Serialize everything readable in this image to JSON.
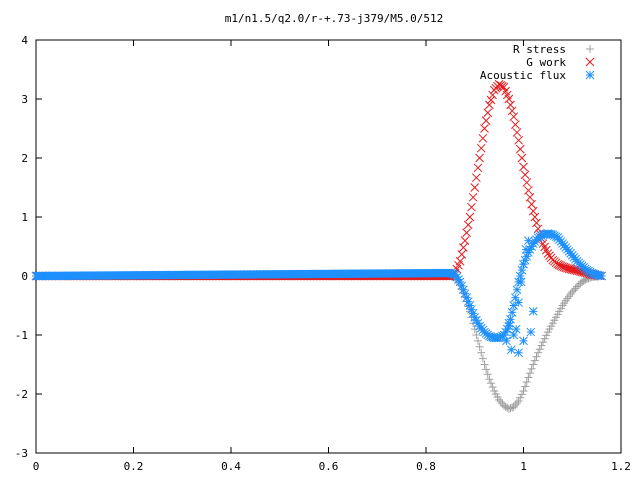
{
  "chart_data": {
    "type": "scatter",
    "title": "m1/n1.5/q2.0/r-+.73-j379/M5.0/512",
    "xlabel": "",
    "ylabel": "",
    "xlim": [
      0,
      1.2
    ],
    "ylim": [
      -3,
      4
    ],
    "xticks": [
      "0",
      "0.2",
      "0.4",
      "0.6",
      "0.8",
      "1",
      "1.2"
    ],
    "yticks": [
      "-3",
      "-2",
      "-1",
      "0",
      "1",
      "2",
      "3",
      "4"
    ],
    "grid": false,
    "legend_position": "top-right",
    "series": [
      {
        "name": "R stress",
        "marker": "plus",
        "color": "#a0a0a0",
        "x": [
          0.0,
          0.85,
          0.86,
          0.87,
          0.88,
          0.89,
          0.9,
          0.91,
          0.92,
          0.93,
          0.94,
          0.95,
          0.96,
          0.97,
          0.98,
          0.99,
          1.0,
          1.01,
          1.02,
          1.03,
          1.04,
          1.05,
          1.06,
          1.07,
          1.08,
          1.09,
          1.1,
          1.11,
          1.12,
          1.13,
          1.14,
          1.15,
          1.16
        ],
        "y": [
          0.0,
          0.0,
          -0.03,
          -0.15,
          -0.35,
          -0.6,
          -0.9,
          -1.2,
          -1.5,
          -1.75,
          -1.95,
          -2.1,
          -2.2,
          -2.25,
          -2.22,
          -2.12,
          -1.95,
          -1.72,
          -1.5,
          -1.3,
          -1.12,
          -0.95,
          -0.8,
          -0.65,
          -0.5,
          -0.38,
          -0.27,
          -0.18,
          -0.1,
          -0.05,
          -0.02,
          -0.01,
          0.0
        ]
      },
      {
        "name": "G work",
        "marker": "cross",
        "color": "#e41a1c",
        "x": [
          0.0,
          0.85,
          0.86,
          0.87,
          0.88,
          0.89,
          0.9,
          0.91,
          0.92,
          0.93,
          0.94,
          0.95,
          0.96,
          0.97,
          0.98,
          0.99,
          1.0,
          1.01,
          1.02,
          1.03,
          1.04,
          1.05,
          1.06,
          1.07,
          1.08,
          1.09,
          1.1,
          1.11,
          1.12,
          1.13,
          1.14,
          1.15,
          1.16
        ],
        "y": [
          0.0,
          0.0,
          0.05,
          0.25,
          0.6,
          1.0,
          1.5,
          2.0,
          2.5,
          2.9,
          3.15,
          3.25,
          3.2,
          3.0,
          2.7,
          2.3,
          1.85,
          1.45,
          1.1,
          0.8,
          0.55,
          0.38,
          0.27,
          0.2,
          0.16,
          0.13,
          0.11,
          0.09,
          0.07,
          0.05,
          0.03,
          0.01,
          0.0
        ]
      },
      {
        "name": "Acoustic flux",
        "marker": "star",
        "color": "#1e90ff",
        "x": [
          0.0,
          0.85,
          0.86,
          0.87,
          0.88,
          0.89,
          0.9,
          0.91,
          0.92,
          0.93,
          0.94,
          0.95,
          0.96,
          0.97,
          0.98,
          0.99,
          1.0,
          1.01,
          1.02,
          1.03,
          1.04,
          1.05,
          1.06,
          1.07,
          1.08,
          1.09,
          1.1,
          1.11,
          1.12,
          1.13,
          1.14,
          1.15,
          1.16,
          0.965,
          0.975,
          0.985,
          0.99,
          0.995,
          1.0,
          1.005,
          1.01,
          1.015,
          1.02,
          0.97,
          0.98,
          0.99,
          1.0
        ],
        "y": [
          0.0,
          0.05,
          0.02,
          -0.1,
          -0.3,
          -0.5,
          -0.7,
          -0.85,
          -0.95,
          -1.02,
          -1.05,
          -1.05,
          -1.0,
          -0.85,
          -0.5,
          -0.1,
          0.2,
          0.4,
          0.55,
          0.65,
          0.7,
          0.72,
          0.7,
          0.65,
          0.55,
          0.45,
          0.35,
          0.25,
          0.17,
          0.1,
          0.05,
          0.02,
          0.0,
          -1.1,
          -1.25,
          -0.9,
          -0.45,
          -0.1,
          0.2,
          0.45,
          0.6,
          -0.95,
          -0.6,
          -0.8,
          -1.0,
          -1.3,
          -1.1
        ]
      }
    ]
  }
}
